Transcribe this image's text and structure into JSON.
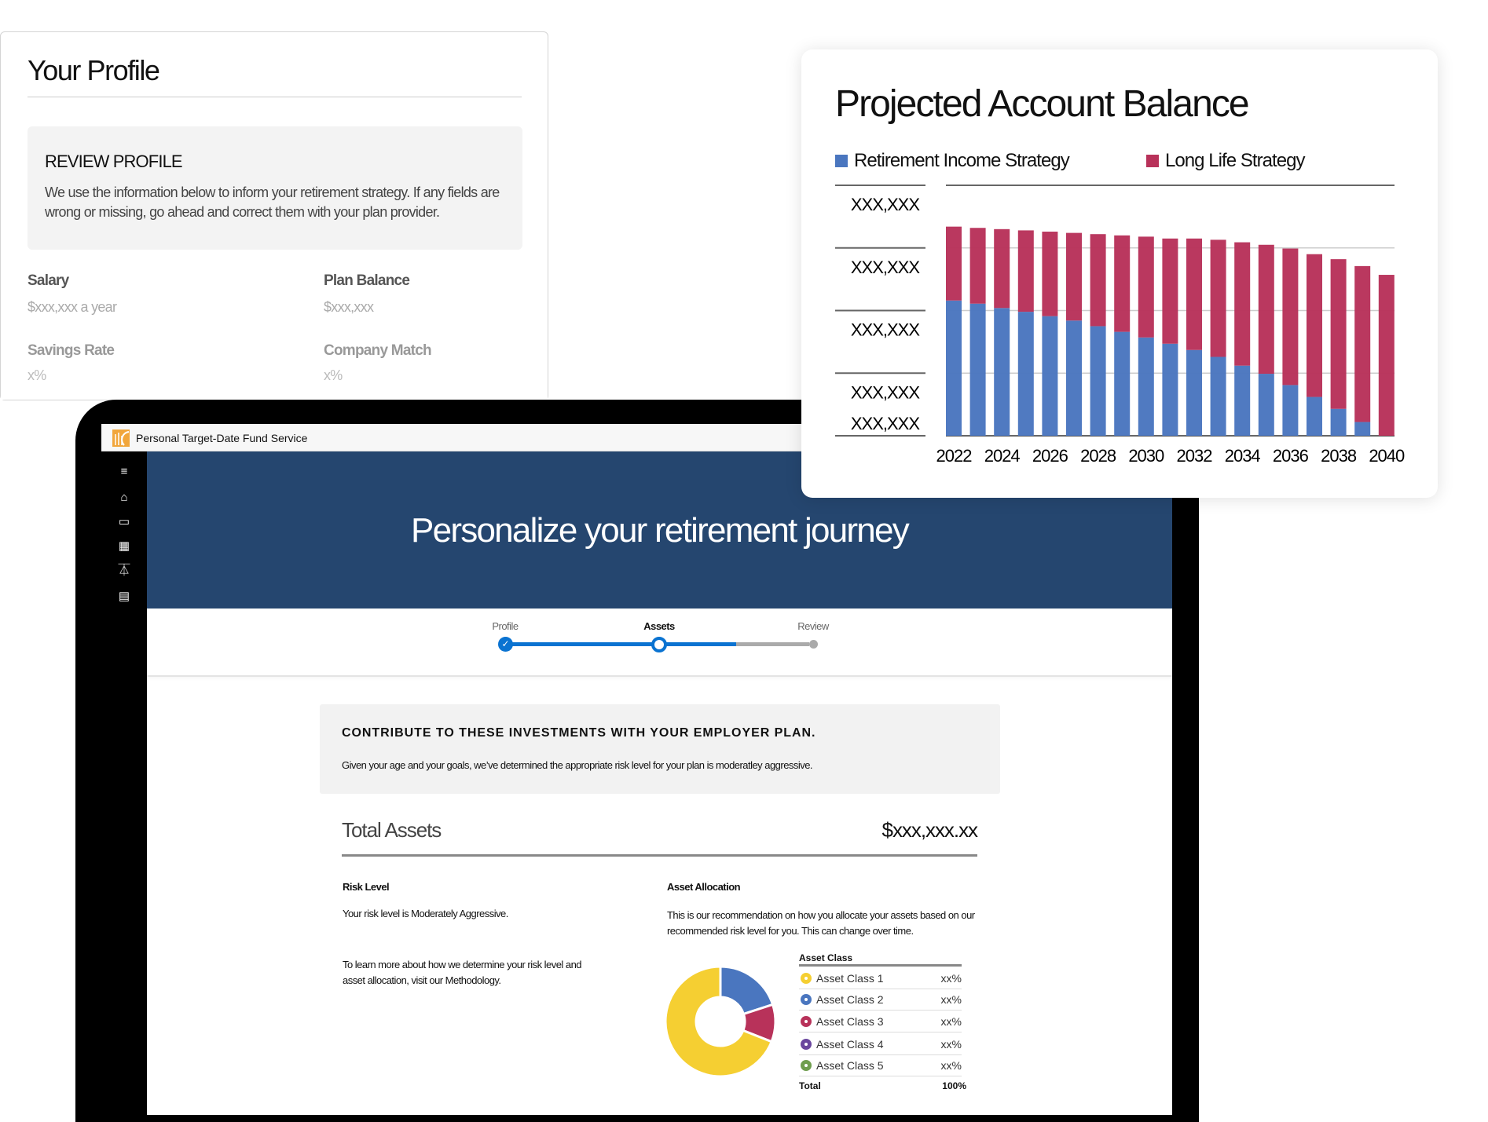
{
  "profile": {
    "title": "Your Profile",
    "review_heading": "REVIEW PROFILE",
    "review_text": "We use the information below to inform your retirement strategy. If any fields are wrong or missing, go ahead and correct them with your plan provider.",
    "fields": [
      {
        "label": "Salary",
        "value": "$xxx,xxx a year"
      },
      {
        "label": "Plan Balance",
        "value": "$xxx,xxx"
      },
      {
        "label": "Savings Rate",
        "value": "x%"
      },
      {
        "label": "Company Match",
        "value": "x%"
      }
    ]
  },
  "app": {
    "title": "Personal Target-Date Fund Service",
    "sidebar_icons": [
      "menu-icon",
      "home-icon",
      "folder-icon",
      "grid-icon",
      "flask-icon",
      "document-icon"
    ]
  },
  "banner": {
    "title": "Personalize your retirement journey"
  },
  "stepper": {
    "steps": [
      {
        "label": "Profile",
        "state": "complete"
      },
      {
        "label": "Assets",
        "state": "current"
      },
      {
        "label": "Review",
        "state": "upcoming"
      }
    ],
    "progress_percent": 70
  },
  "notice": {
    "heading": "CONTRIBUTE TO THESE INVESTMENTS WITH YOUR EMPLOYER PLAN.",
    "text": "Given your age and your goals, we’ve determined the appropriate risk level for your plan is moderatley aggressive."
  },
  "total": {
    "label": "Total Assets",
    "value": "$xxx,xxx.xx"
  },
  "risk": {
    "heading": "Risk Level",
    "text": "Your risk level is Moderately Aggressive.",
    "learn": "To learn more about how we determine your risk level and asset allocation, visit our Methodology."
  },
  "allocation": {
    "heading": "Asset Allocation",
    "text": "This is our recommendation on how you allocate your assets based on our recommended risk level for you. This can change over time.",
    "table_header": "Asset Class",
    "rows": [
      {
        "name": "Asset Class 1",
        "value": "xx%",
        "color": "#f5cf32"
      },
      {
        "name": "Asset Class 2",
        "value": "xx%",
        "color": "#4a76bf"
      },
      {
        "name": "Asset Class 3",
        "value": "xx%",
        "color": "#b8325a"
      },
      {
        "name": "Asset Class 4",
        "value": "xx%",
        "color": "#6a479e"
      },
      {
        "name": "Asset Class 5",
        "value": "xx%",
        "color": "#6f9e4e"
      }
    ],
    "total_label": "Total",
    "total_value": "100%"
  },
  "chart_data": [
    {
      "type": "bar",
      "stacked": true,
      "title": "Projected Account Balance",
      "categories": [
        2022,
        2023,
        2024,
        2025,
        2026,
        2027,
        2028,
        2029,
        2030,
        2031,
        2032,
        2033,
        2034,
        2035,
        2036,
        2037,
        2038,
        2039,
        2040
      ],
      "x_tick_labels": [
        "2022",
        "2024",
        "2026",
        "2028",
        "2030",
        "2032",
        "2034",
        "2036",
        "2038",
        "2040"
      ],
      "y_tick_labels": [
        "XXX,XXX",
        "XXX,XXX",
        "XXX,XXX",
        "XXX,XXX",
        "XXX,XXX"
      ],
      "ylim": [
        0,
        4
      ],
      "grid": true,
      "legend": "top",
      "series": [
        {
          "name": "Retirement Income Strategy",
          "color": "#4a76bf",
          "values": [
            2.16,
            2.11,
            2.04,
            1.98,
            1.91,
            1.84,
            1.75,
            1.66,
            1.57,
            1.47,
            1.37,
            1.26,
            1.12,
            0.99,
            0.81,
            0.62,
            0.43,
            0.22,
            0
          ]
        },
        {
          "name": "Long Life Strategy",
          "color": "#b8325a",
          "values": [
            1.18,
            1.21,
            1.26,
            1.3,
            1.35,
            1.4,
            1.47,
            1.54,
            1.61,
            1.68,
            1.78,
            1.87,
            1.97,
            2.06,
            2.18,
            2.28,
            2.39,
            2.49,
            2.57
          ]
        }
      ]
    },
    {
      "type": "pie",
      "donut": true,
      "categories": [
        "Asset Class 1",
        "Asset Class 2",
        "Asset Class 3"
      ],
      "values": [
        0.69,
        0.2,
        0.11
      ],
      "colors": [
        "#f5cf32",
        "#4a76bf",
        "#b8325a"
      ]
    }
  ]
}
